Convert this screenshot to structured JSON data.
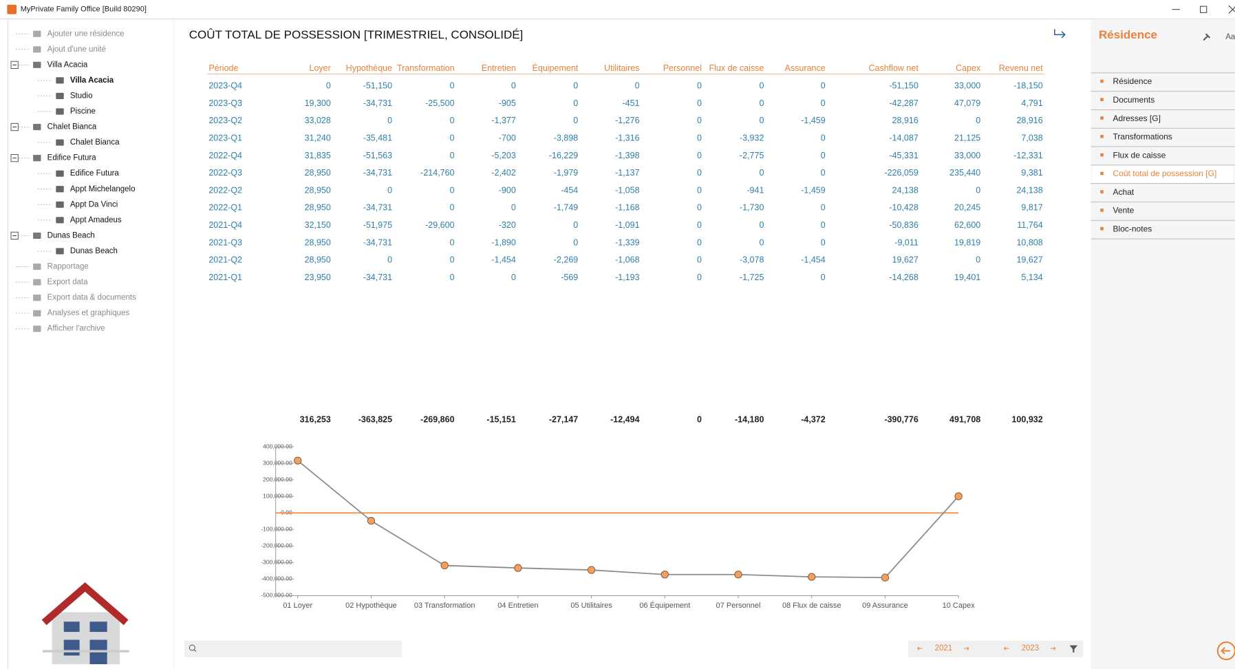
{
  "window": {
    "title": "MyPrivate Family Office [Build 80290]"
  },
  "tree": [
    {
      "label": "Ajouter une résidence"
    },
    {
      "label": "Ajout d'une unité"
    },
    {
      "label": "Villa Acacia",
      "children": [
        {
          "label": "Villa Acacia",
          "selected": true
        },
        {
          "label": "Studio"
        },
        {
          "label": "Piscine"
        }
      ]
    },
    {
      "label": "Chalet Bianca",
      "children": [
        {
          "label": "Chalet Bianca"
        }
      ]
    },
    {
      "label": "Edifice Futura",
      "children": [
        {
          "label": "Edifice Futura"
        },
        {
          "label": "Appt Michelangelo"
        },
        {
          "label": "Appt Da Vinci"
        },
        {
          "label": "Appt Amadeus"
        }
      ]
    },
    {
      "label": "Dunas Beach",
      "children": [
        {
          "label": "Dunas Beach"
        }
      ]
    },
    {
      "label": "Rapportage"
    },
    {
      "label": "Export data"
    },
    {
      "label": "Export data & documents"
    },
    {
      "label": "Analyses et graphiques"
    },
    {
      "label": "Afficher l'archive"
    }
  ],
  "main": {
    "title": "COÛT TOTAL DE POSSESSION [TRIMESTRIEL, CONSOLIDÉ]"
  },
  "table": {
    "columns": [
      "Période",
      "Loyer",
      "Hypothèque",
      "Transformation",
      "Entretien",
      "Équipement",
      "Utilitaires",
      "Personnel",
      "Flux de caisse",
      "Assurance",
      "Cashflow net",
      "Capex",
      "Revenu net"
    ],
    "rows": [
      [
        "2023-Q4",
        "0",
        "-51,150",
        "0",
        "0",
        "0",
        "0",
        "0",
        "0",
        "0",
        "-51,150",
        "33,000",
        "-18,150"
      ],
      [
        "2023-Q3",
        "19,300",
        "-34,731",
        "-25,500",
        "-905",
        "0",
        "-451",
        "0",
        "0",
        "0",
        "-42,287",
        "47,079",
        "4,791"
      ],
      [
        "2023-Q2",
        "33,028",
        "0",
        "0",
        "-1,377",
        "0",
        "-1,276",
        "0",
        "0",
        "-1,459",
        "28,916",
        "0",
        "28,916"
      ],
      [
        "2023-Q1",
        "31,240",
        "-35,481",
        "0",
        "-700",
        "-3,898",
        "-1,316",
        "0",
        "-3,932",
        "0",
        "-14,087",
        "21,125",
        "7,038"
      ],
      [
        "2022-Q4",
        "31,835",
        "-51,563",
        "0",
        "-5,203",
        "-16,229",
        "-1,398",
        "0",
        "-2,775",
        "0",
        "-45,331",
        "33,000",
        "-12,331"
      ],
      [
        "2022-Q3",
        "28,950",
        "-34,731",
        "-214,760",
        "-2,402",
        "-1,979",
        "-1,137",
        "0",
        "0",
        "0",
        "-226,059",
        "235,440",
        "9,381"
      ],
      [
        "2022-Q2",
        "28,950",
        "0",
        "0",
        "-900",
        "-454",
        "-1,058",
        "0",
        "-941",
        "-1,459",
        "24,138",
        "0",
        "24,138"
      ],
      [
        "2022-Q1",
        "28,950",
        "-34,731",
        "0",
        "0",
        "-1,749",
        "-1,168",
        "0",
        "-1,730",
        "0",
        "-10,428",
        "20,245",
        "9,817"
      ],
      [
        "2021-Q4",
        "32,150",
        "-51,975",
        "-29,600",
        "-320",
        "0",
        "-1,091",
        "0",
        "0",
        "0",
        "-50,836",
        "62,600",
        "11,764"
      ],
      [
        "2021-Q3",
        "28,950",
        "-34,731",
        "0",
        "-1,890",
        "0",
        "-1,339",
        "0",
        "0",
        "0",
        "-9,011",
        "19,819",
        "10,808"
      ],
      [
        "2021-Q2",
        "28,950",
        "0",
        "0",
        "-1,454",
        "-2,269",
        "-1,068",
        "0",
        "-3,078",
        "-1,454",
        "19,627",
        "0",
        "19,627"
      ],
      [
        "2021-Q1",
        "23,950",
        "-34,731",
        "0",
        "0",
        "-569",
        "-1,193",
        "0",
        "-1,725",
        "0",
        "-14,268",
        "19,401",
        "5,134"
      ]
    ],
    "totals": [
      "316,253",
      "-363,825",
      "-269,860",
      "-15,151",
      "-27,147",
      "-12,494",
      "0",
      "-14,180",
      "-4,372",
      "-390,776",
      "491,708",
      "100,932"
    ]
  },
  "chart_data": {
    "type": "line",
    "categories": [
      "01 Loyer",
      "02 Hypothèque",
      "03 Transformation",
      "04 Entretien",
      "05 Utilitaires",
      "06 Équipement",
      "07 Personnel",
      "08 Flux de caisse",
      "09 Assurance",
      "10 Capex"
    ],
    "values": [
      316253,
      -47572,
      -317432,
      -332583,
      -345077,
      -372224,
      -372224,
      -386404,
      -390776,
      100932
    ],
    "color": "#8c8c8c",
    "marker_color": "#f0a060",
    "reference_line": 0,
    "reference_color": "#f08a3c",
    "ylim": [
      -500000,
      400000
    ],
    "yticks": [
      {
        "value": -500000,
        "label": "-500,000.00"
      },
      {
        "value": -400000,
        "label": "-400,000.00"
      },
      {
        "value": -300000,
        "label": "-300,000.00"
      },
      {
        "value": -200000,
        "label": "-200,000.00"
      },
      {
        "value": -100000,
        "label": "-100,000.00"
      },
      {
        "value": 0,
        "label": "0.00"
      },
      {
        "value": 100000,
        "label": "100,000.00"
      },
      {
        "value": 200000,
        "label": "200,000.00"
      },
      {
        "value": 300000,
        "label": "300,000.00"
      },
      {
        "value": 400000,
        "label": "400,000.00"
      }
    ]
  },
  "footer": {
    "year_from": "2021",
    "year_to": "2023"
  },
  "side_panel": {
    "title": "Résidence",
    "font_button": "Aa",
    "items": [
      "Résidence",
      "Documents",
      "Adresses [G]",
      "Transformations",
      "Flux de caisse",
      "Coût total de possession [G]",
      "Achat",
      "Vente",
      "Bloc-notes"
    ],
    "active": 5
  }
}
